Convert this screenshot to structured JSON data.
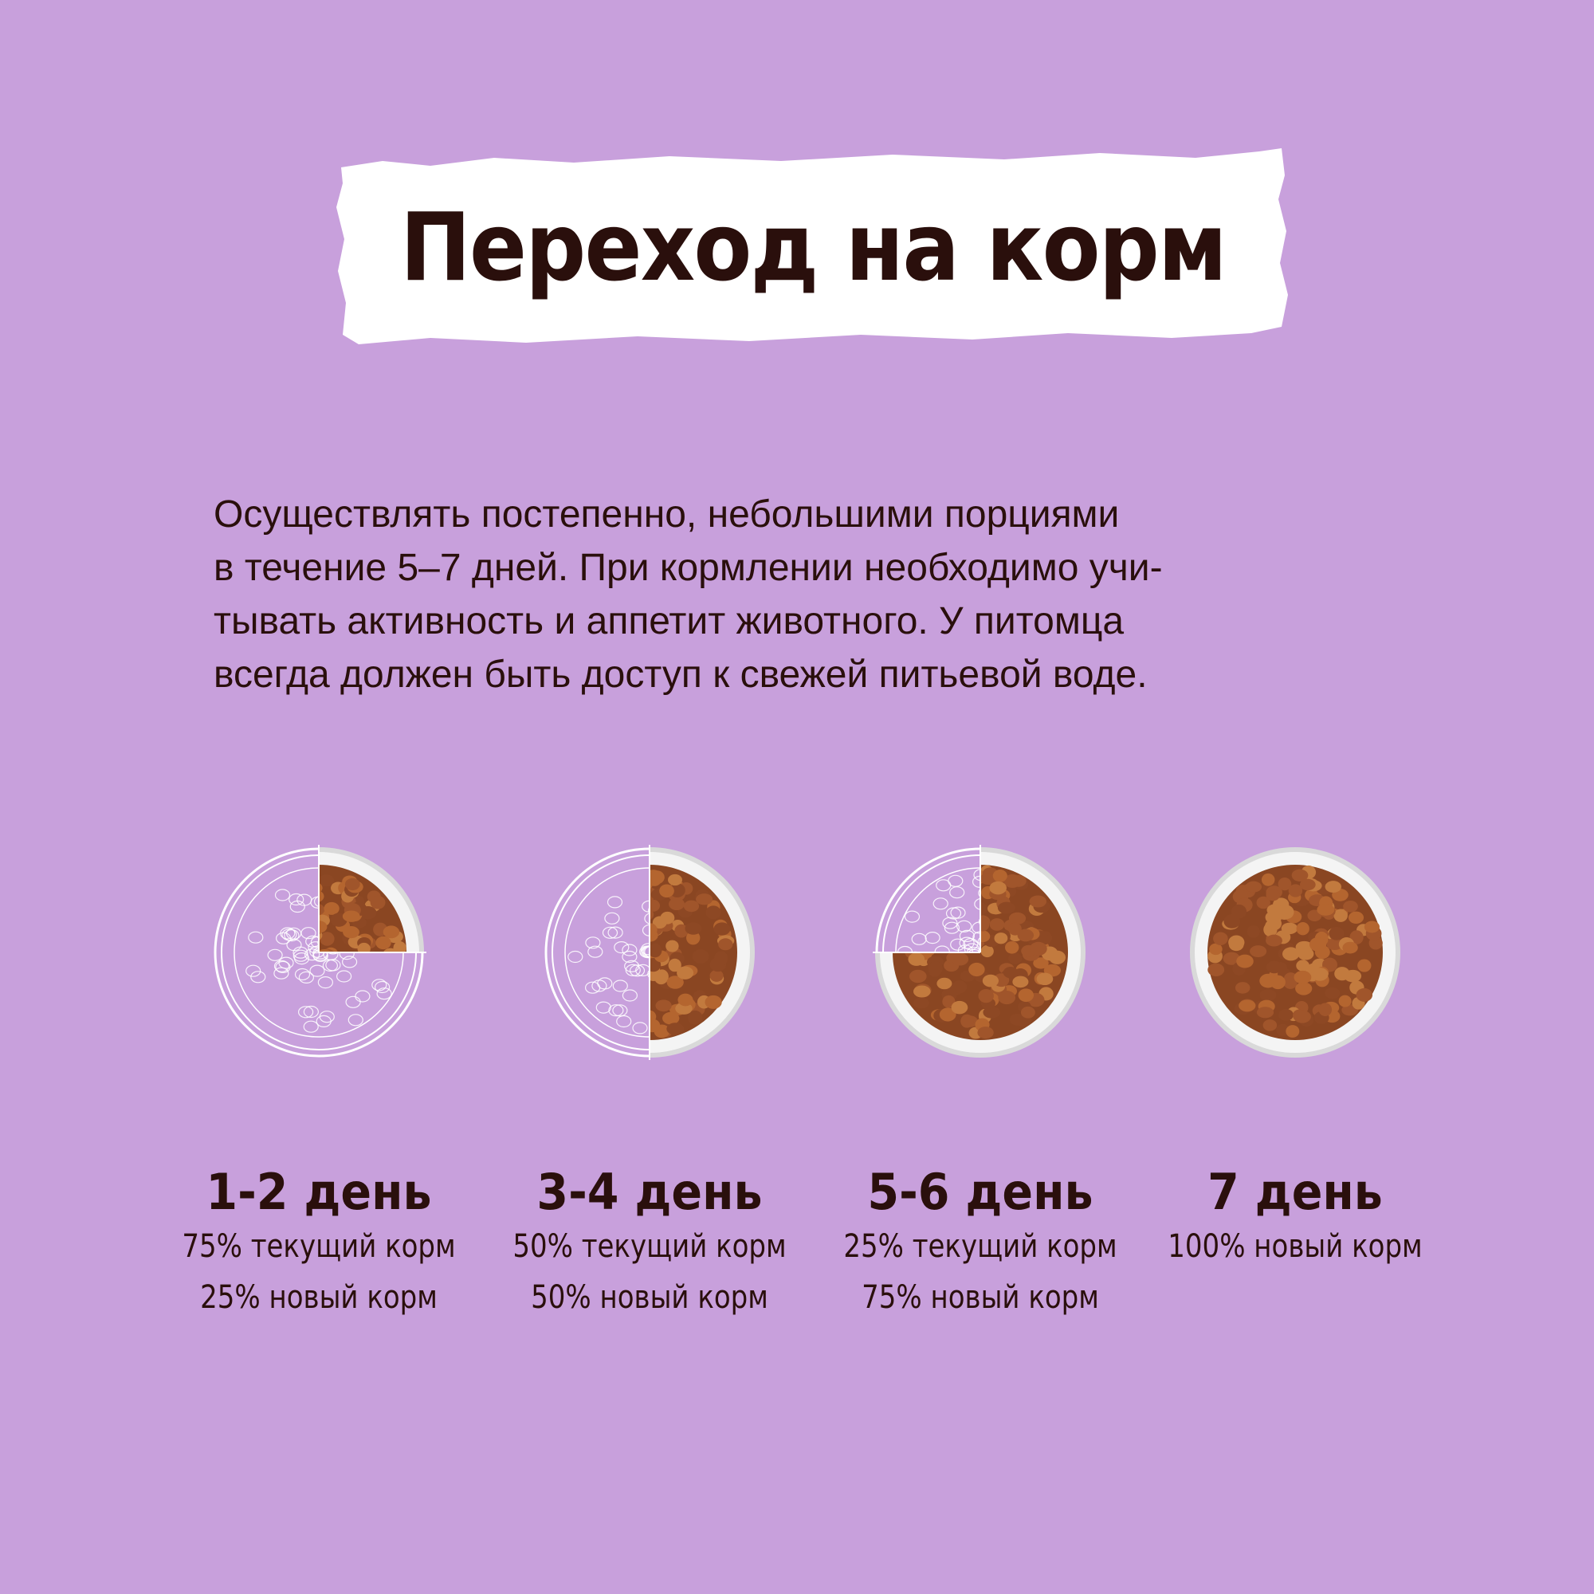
{
  "title": "Переход на корм",
  "intro_lines": [
    "Осуществлять постепенно, небольшими порциями",
    "в течение 5–7 дней. При кормлении необходимо учи-",
    "тывать активность и аппетит животного. У питомца",
    "всегда должен быть доступ к свежей питьевой воде."
  ],
  "colors": {
    "background": "#c8a0dc",
    "text": "#2a0f0c",
    "banner": "#ffffff",
    "kibble": "#a0552b"
  },
  "steps": [
    {
      "day": "1-2 день",
      "lines": [
        "75% текущий корм",
        "25% новый корм"
      ],
      "new_fraction": 0.25
    },
    {
      "day": "3-4 день",
      "lines": [
        "50% текущий корм",
        "50% новый корм"
      ],
      "new_fraction": 0.5
    },
    {
      "day": "5-6 день",
      "lines": [
        "25% текущий корм",
        "75% новый корм"
      ],
      "new_fraction": 0.75
    },
    {
      "day": "7 день",
      "lines": [
        "100% новый корм"
      ],
      "new_fraction": 1.0
    }
  ]
}
